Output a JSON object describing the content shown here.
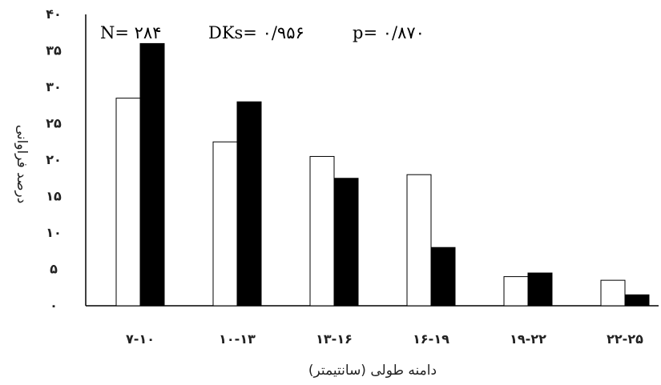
{
  "chart_data": {
    "type": "bar",
    "title": "",
    "xlabel": "دامنه طولی (سانتیمتر)",
    "ylabel": "درصد فراوانی",
    "ylim": [
      0,
      40
    ],
    "y_ticks": [
      "۰",
      "۵",
      "۱۰",
      "۱۵",
      "۲۰",
      "۲۵",
      "۳۰",
      "۳۵",
      "۴۰"
    ],
    "categories": [
      "۷-۱۰",
      "۱۰-۱۳",
      "۱۳-۱۶",
      "۱۶-۱۹",
      "۱۹-۲۲",
      "۲۲-۲۵"
    ],
    "series": [
      {
        "name": "",
        "color": "#ffffff",
        "values": [
          28.5,
          22.5,
          20.5,
          18.0,
          4.0,
          3.5
        ]
      },
      {
        "name": "",
        "color": "#000000",
        "values": [
          36.0,
          28.0,
          17.5,
          8.0,
          4.5,
          1.5
        ]
      }
    ],
    "annotations": {
      "n": "N= ۲۸۴",
      "dks": "DKs= ۰/۹۵۶",
      "p": "p= ۰/۸۷۰"
    },
    "grid": false,
    "legend": "none"
  }
}
